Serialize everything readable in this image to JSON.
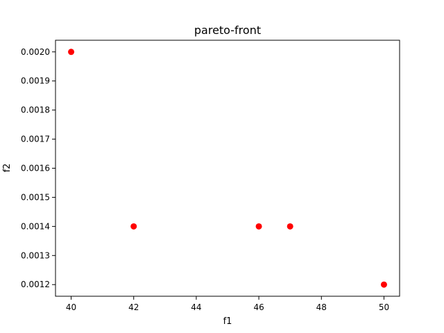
{
  "chart_data": {
    "type": "scatter",
    "title": "pareto-front",
    "xlabel": "f1",
    "ylabel": "f2",
    "xlim": [
      39.5,
      50.5
    ],
    "ylim": [
      0.00116,
      0.00204
    ],
    "xticks": [
      40,
      42,
      44,
      46,
      48,
      50
    ],
    "xtick_labels": [
      "40",
      "42",
      "44",
      "46",
      "48",
      "50"
    ],
    "yticks": [
      0.0012,
      0.0013,
      0.0014,
      0.0015,
      0.0016,
      0.0017,
      0.0018,
      0.0019,
      0.002
    ],
    "ytick_labels": [
      "0.0012",
      "0.0013",
      "0.0014",
      "0.0015",
      "0.0016",
      "0.0017",
      "0.0018",
      "0.0019",
      "0.0020"
    ],
    "grid": false,
    "series": [
      {
        "color": "#ff0000",
        "points": [
          {
            "x": 40,
            "y": 0.002
          },
          {
            "x": 42,
            "y": 0.0014
          },
          {
            "x": 46,
            "y": 0.0014
          },
          {
            "x": 47,
            "y": 0.0014
          },
          {
            "x": 50,
            "y": 0.0012
          }
        ]
      }
    ]
  }
}
